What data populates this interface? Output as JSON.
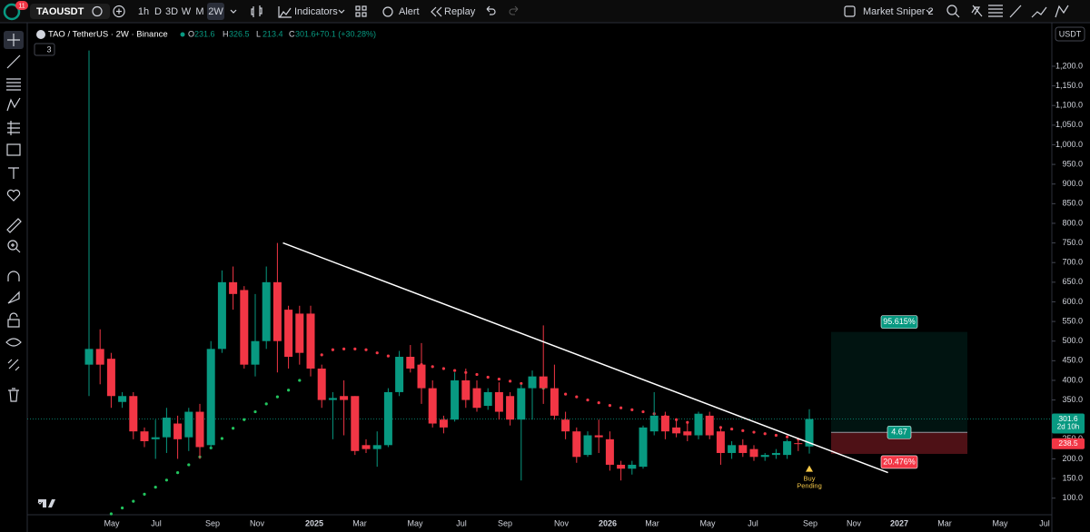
{
  "toolbar": {
    "badge": "11",
    "symbol": "TAOUSDT",
    "intervals": [
      "1h",
      "D",
      "3D",
      "W",
      "M",
      "2W"
    ],
    "indicators": "Indicators",
    "alert": "Alert",
    "replay": "Replay",
    "layout": "Market Sniper 2"
  },
  "chart_data": {
    "type": "candlestick",
    "title": "TAO / TetherUS · 2W · Binance",
    "ohlc": [
      {
        "label": "O",
        "value": 231.6
      },
      {
        "label": "H",
        "value": 326.5
      },
      {
        "label": "L",
        "value": 213.4
      },
      {
        "label": "C",
        "value": 301.6
      }
    ],
    "change": "+70.1 (+30.28%)",
    "indicator_count": "3",
    "currency": "USDT",
    "colors": {
      "up": "#089981",
      "down": "#f23645"
    },
    "open": [
      440,
      480,
      455,
      345,
      360,
      270,
      250,
      255,
      290,
      255,
      320,
      235,
      480,
      650,
      630,
      440,
      500,
      650,
      580,
      570,
      570,
      430,
      350,
      360,
      360,
      235,
      225,
      235,
      370,
      460,
      440,
      380,
      300,
      300,
      400,
      380,
      335,
      370,
      360,
      300,
      380,
      410,
      380,
      300,
      270,
      210,
      260,
      250,
      185,
      175,
      180,
      270,
      310,
      280,
      270,
      260,
      310,
      270,
      215,
      235,
      225,
      205,
      210,
      210,
      240,
      231.6
    ],
    "high": [
      1240,
      530,
      470,
      370,
      370,
      280,
      300,
      330,
      310,
      330,
      340,
      500,
      680,
      690,
      640,
      620,
      690,
      750,
      590,
      590,
      590,
      440,
      370,
      400,
      360,
      250,
      270,
      380,
      475,
      490,
      495,
      400,
      310,
      420,
      430,
      400,
      380,
      395,
      370,
      390,
      425,
      540,
      440,
      320,
      280,
      270,
      300,
      270,
      195,
      195,
      285,
      370,
      320,
      300,
      290,
      320,
      320,
      280,
      245,
      250,
      235,
      215,
      225,
      250,
      250,
      326.5
    ],
    "low": [
      360,
      390,
      330,
      330,
      250,
      230,
      200,
      215,
      200,
      220,
      200,
      225,
      470,
      580,
      430,
      410,
      480,
      420,
      430,
      440,
      410,
      330,
      250,
      260,
      210,
      215,
      180,
      230,
      360,
      420,
      340,
      280,
      265,
      295,
      330,
      320,
      325,
      300,
      285,
      145,
      300,
      340,
      300,
      250,
      190,
      205,
      215,
      170,
      145,
      160,
      175,
      260,
      250,
      255,
      245,
      250,
      250,
      185,
      200,
      205,
      195,
      195,
      200,
      200,
      220,
      213.4
    ],
    "close": [
      480,
      440,
      360,
      360,
      270,
      245,
      255,
      305,
      250,
      320,
      230,
      480,
      650,
      620,
      440,
      500,
      650,
      500,
      460,
      470,
      430,
      350,
      355,
      350,
      220,
      225,
      235,
      370,
      460,
      430,
      380,
      290,
      280,
      400,
      350,
      330,
      370,
      320,
      300,
      380,
      410,
      380,
      310,
      270,
      205,
      260,
      255,
      185,
      175,
      185,
      280,
      310,
      270,
      265,
      260,
      315,
      260,
      215,
      235,
      215,
      205,
      210,
      215,
      245,
      238,
      301.6
    ],
    "sar": [
      null,
      null,
      60,
      75,
      92,
      110,
      128,
      146,
      165,
      185,
      205,
      228,
      252,
      278,
      300,
      320,
      340,
      358,
      375,
      400,
      440,
      465,
      478,
      480,
      480,
      478,
      470,
      462,
      455,
      448,
      440,
      435,
      430,
      425,
      420,
      415,
      408,
      403,
      398,
      392,
      386,
      380,
      372,
      365,
      358,
      350,
      343,
      336,
      330,
      325,
      320,
      315,
      308,
      300,
      293,
      288,
      283,
      280,
      276,
      272,
      268,
      264,
      260,
      256,
      250,
      242
    ],
    "ylim": [
      60,
      1304
    ],
    "yticks": [
      {
        "value": 100,
        "label": "100.0"
      },
      {
        "value": 150,
        "label": "150.0"
      },
      {
        "value": 200,
        "label": "200.0"
      },
      {
        "value": 250,
        "label": "250.0"
      },
      {
        "value": 300,
        "label": "300.0"
      },
      {
        "value": 350,
        "label": "350.0"
      },
      {
        "value": 400,
        "label": "400.0"
      },
      {
        "value": 450,
        "label": "450.0"
      },
      {
        "value": 500,
        "label": "500.0"
      },
      {
        "value": 550,
        "label": "550.0"
      },
      {
        "value": 600,
        "label": "600.0"
      },
      {
        "value": 650,
        "label": "650.0"
      },
      {
        "value": 700,
        "label": "700.0"
      },
      {
        "value": 750,
        "label": "750.0"
      },
      {
        "value": 800,
        "label": "800.0"
      },
      {
        "value": 850,
        "label": "850.0"
      },
      {
        "value": 900,
        "label": "900.0"
      },
      {
        "value": 950,
        "label": "950.0"
      },
      {
        "value": 1000,
        "label": "1,000.0"
      },
      {
        "value": 1050,
        "label": "1,050.0"
      },
      {
        "value": 1100,
        "label": "1,100.0"
      },
      {
        "value": 1150,
        "label": "1,150.0"
      },
      {
        "value": 1200,
        "label": "1,200.0"
      }
    ],
    "xticks": [
      "May",
      "Jul",
      "Sep",
      "Nov",
      "2025",
      "Mar",
      "May",
      "Jul",
      "Sep",
      "Nov",
      "2026",
      "Mar",
      "May",
      "Jul",
      "Sep",
      "Nov",
      "2027",
      "Mar",
      "May",
      "Jul"
    ],
    "trendline": {
      "x": [
        17.5,
        72.1
      ],
      "y": [
        750,
        165
      ]
    },
    "countdown": "2d 10h",
    "marker_price": 238.5,
    "position": {
      "entry": 267.5,
      "target": 523.3,
      "stop": 212.7,
      "target_label": "95.615%",
      "ratio_label": "4.67",
      "stop_label": "20.476%"
    },
    "signal": [
      "Buy",
      "Pending"
    ]
  }
}
